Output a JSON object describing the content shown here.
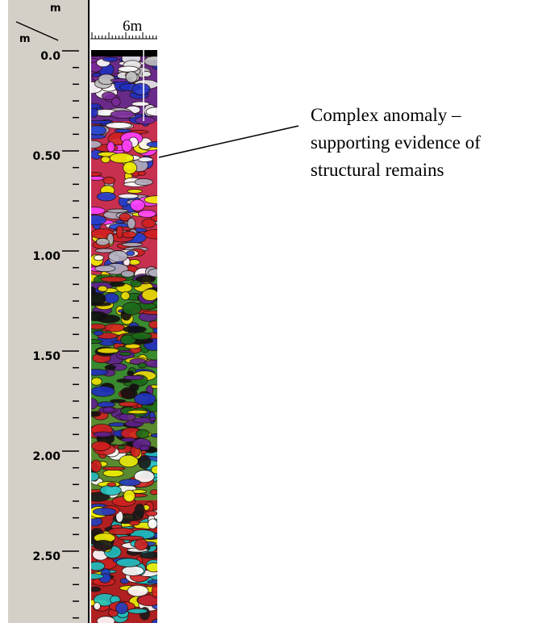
{
  "ruler": {
    "unit_top": "m",
    "unit_left": "m",
    "distance_label": "6m",
    "depth_labels": [
      "0.0",
      "0.50",
      "1.00",
      "1.50",
      "2.00",
      "2.50"
    ]
  },
  "annotation": {
    "lines": [
      "Complex anomaly –",
      "supporting evidence of",
      "structural remains"
    ]
  }
}
